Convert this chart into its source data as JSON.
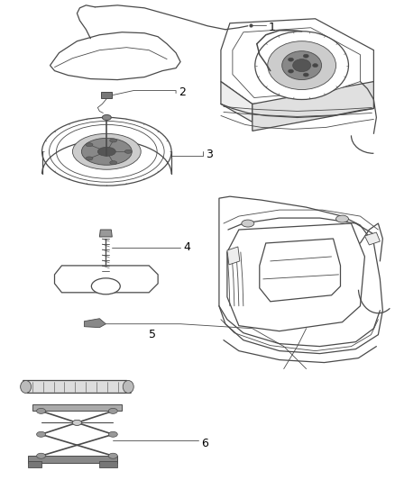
{
  "background_color": "#ffffff",
  "line_color": "#4a4a4a",
  "label_color": "#000000",
  "fig_width": 4.38,
  "fig_height": 5.33,
  "dpi": 100
}
